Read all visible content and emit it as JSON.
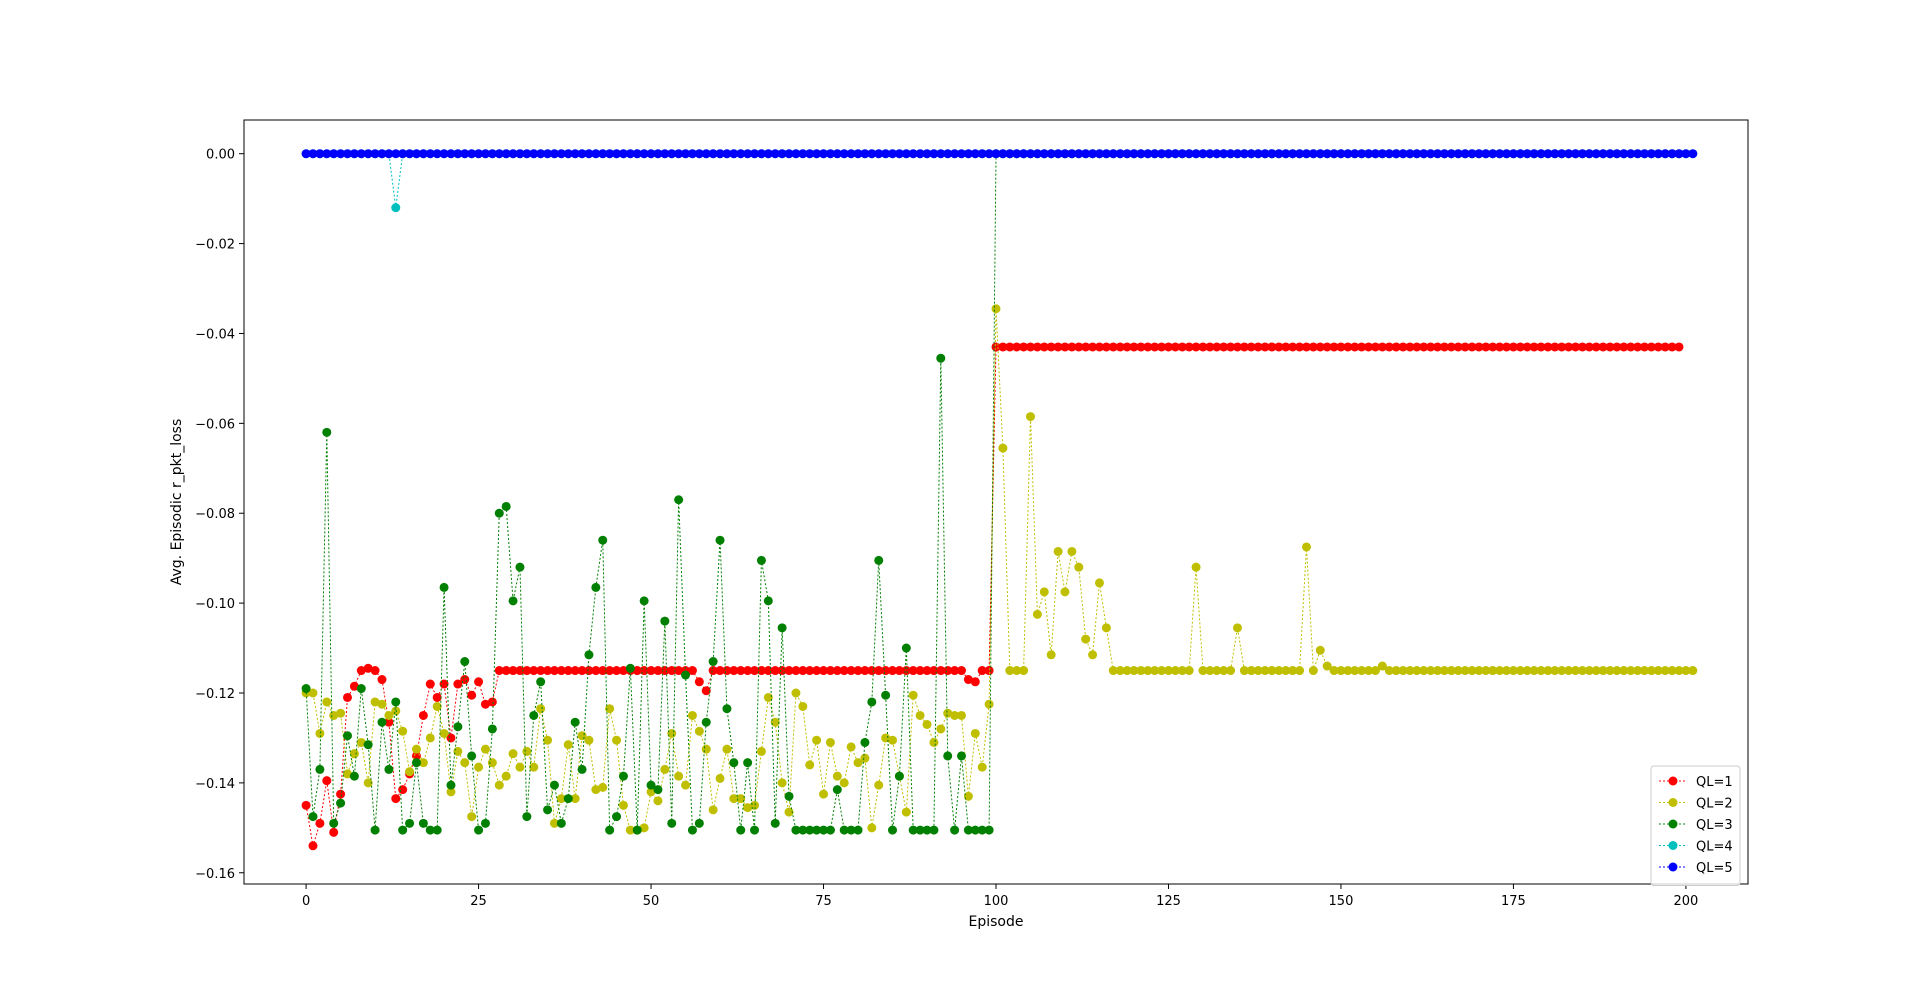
{
  "chart_data": {
    "type": "line",
    "title": "",
    "xlabel": "Episode",
    "ylabel": "Avg. Episodic r_pkt_loss",
    "xlim": [
      -9,
      209
    ],
    "ylim": [
      -0.1625,
      0.0075
    ],
    "xticks": [
      0,
      25,
      50,
      75,
      100,
      125,
      150,
      175,
      200
    ],
    "yticks": [
      0.0,
      -0.02,
      -0.04,
      -0.06,
      -0.08,
      -0.1,
      -0.12,
      -0.14,
      -0.16
    ],
    "ytick_labels": [
      "0.00",
      "−0.02",
      "−0.04",
      "−0.06",
      "−0.08",
      "−0.10",
      "−0.12",
      "−0.14",
      "−0.16"
    ],
    "grid": false,
    "legend_position": "lower-right",
    "x": "episodes 0 through 199 (200 points per series)",
    "series": [
      {
        "name": "QL=1",
        "color": "#ff0000",
        "values": [
          -0.145,
          -0.154,
          -0.149,
          -0.1395,
          -0.151,
          -0.1425,
          -0.121,
          -0.1185,
          -0.115,
          -0.1145,
          -0.115,
          -0.117,
          -0.1265,
          -0.1435,
          -0.1415,
          -0.138,
          -0.134,
          -0.125,
          -0.118,
          -0.121,
          -0.118,
          -0.13,
          -0.118,
          -0.117,
          -0.1205,
          -0.1175,
          -0.1225,
          -0.122,
          -0.115,
          -0.115,
          -0.115,
          -0.115,
          -0.115,
          -0.115,
          -0.115,
          -0.115,
          -0.115,
          -0.115,
          -0.115,
          -0.115,
          -0.115,
          -0.115,
          -0.115,
          -0.115,
          -0.115,
          -0.115,
          -0.115,
          -0.115,
          -0.115,
          -0.115,
          -0.115,
          -0.115,
          -0.115,
          -0.115,
          -0.115,
          -0.115,
          -0.115,
          -0.1175,
          -0.1195,
          -0.115,
          -0.115,
          -0.115,
          -0.115,
          -0.115,
          -0.115,
          -0.115,
          -0.115,
          -0.115,
          -0.115,
          -0.115,
          -0.115,
          -0.115,
          -0.115,
          -0.115,
          -0.115,
          -0.115,
          -0.115,
          -0.115,
          -0.115,
          -0.115,
          -0.115,
          -0.115,
          -0.115,
          -0.115,
          -0.115,
          -0.115,
          -0.115,
          -0.115,
          -0.115,
          -0.115,
          -0.115,
          -0.115,
          -0.115,
          -0.115,
          -0.115,
          -0.115,
          -0.117,
          -0.1175,
          -0.115,
          -0.115,
          -0.043,
          -0.043,
          -0.043,
          -0.043,
          -0.043,
          -0.043,
          -0.043,
          -0.043,
          -0.043,
          -0.043,
          -0.043,
          -0.043,
          -0.043,
          -0.043,
          -0.043,
          -0.043,
          -0.043,
          -0.043,
          -0.043,
          -0.043,
          -0.043,
          -0.043,
          -0.043,
          -0.043,
          -0.043,
          -0.043,
          -0.043,
          -0.043,
          -0.043,
          -0.043,
          -0.043,
          -0.043,
          -0.043,
          -0.043,
          -0.043,
          -0.043,
          -0.043,
          -0.043,
          -0.043,
          -0.043,
          -0.043,
          -0.043,
          -0.043,
          -0.043,
          -0.043,
          -0.043,
          -0.043,
          -0.043,
          -0.043,
          -0.043,
          -0.043,
          -0.043,
          -0.043,
          -0.043,
          -0.043,
          -0.043,
          -0.043,
          -0.043,
          -0.043,
          -0.043,
          -0.043,
          -0.043,
          -0.043,
          -0.043,
          -0.043,
          -0.043,
          -0.043,
          -0.043,
          -0.043,
          -0.043,
          -0.043,
          -0.043,
          -0.043,
          -0.043,
          -0.043,
          -0.043,
          -0.043,
          -0.043,
          -0.043,
          -0.043,
          -0.043,
          -0.043,
          -0.043,
          -0.043,
          -0.043,
          -0.043,
          -0.043,
          -0.043,
          -0.043,
          -0.043,
          -0.043,
          -0.043,
          -0.043,
          -0.043,
          -0.043,
          -0.043,
          -0.043,
          -0.043,
          -0.043,
          -0.043
        ]
      },
      {
        "name": "QL=2",
        "color": "#bfbf00",
        "values": [
          -0.12,
          -0.12,
          -0.129,
          -0.122,
          -0.125,
          -0.1245,
          -0.138,
          -0.1335,
          -0.131,
          -0.14,
          -0.122,
          -0.1225,
          -0.125,
          -0.124,
          -0.1285,
          -0.1375,
          -0.1325,
          -0.1355,
          -0.13,
          -0.123,
          -0.129,
          -0.142,
          -0.133,
          -0.1355,
          -0.1475,
          -0.1365,
          -0.1325,
          -0.1355,
          -0.1405,
          -0.1385,
          -0.1335,
          -0.1365,
          -0.133,
          -0.1365,
          -0.1235,
          -0.1305,
          -0.149,
          -0.1435,
          -0.1315,
          -0.1435,
          -0.1295,
          -0.1305,
          -0.1415,
          -0.141,
          -0.1235,
          -0.1305,
          -0.145,
          -0.1505,
          -0.1505,
          -0.15,
          -0.142,
          -0.144,
          -0.137,
          -0.129,
          -0.1385,
          -0.1405,
          -0.125,
          -0.1285,
          -0.1325,
          -0.146,
          -0.139,
          -0.1325,
          -0.1435,
          -0.1435,
          -0.1455,
          -0.145,
          -0.133,
          -0.121,
          -0.1265,
          -0.14,
          -0.1465,
          -0.12,
          -0.123,
          -0.136,
          -0.1305,
          -0.1425,
          -0.131,
          -0.1385,
          -0.14,
          -0.132,
          -0.1355,
          -0.1345,
          -0.15,
          -0.1405,
          -0.13,
          -0.1305,
          -0.1385,
          -0.1465,
          -0.1205,
          -0.125,
          -0.127,
          -0.131,
          -0.128,
          -0.1245,
          -0.125,
          -0.125,
          -0.143,
          -0.129,
          -0.1365,
          -0.1225,
          -0.0345,
          -0.0655,
          -0.115,
          -0.115,
          -0.115,
          -0.0585,
          -0.1025,
          -0.0975,
          -0.1115,
          -0.0885,
          -0.0975,
          -0.0885,
          -0.092,
          -0.108,
          -0.1115,
          -0.0955,
          -0.1055,
          -0.115,
          -0.115,
          -0.115,
          -0.115,
          -0.115,
          -0.115,
          -0.115,
          -0.115,
          -0.115,
          -0.115,
          -0.115,
          -0.115,
          -0.092,
          -0.115,
          -0.115,
          -0.115,
          -0.115,
          -0.115,
          -0.1055,
          -0.115,
          -0.115,
          -0.115,
          -0.115,
          -0.115,
          -0.115,
          -0.115,
          -0.115,
          -0.115,
          -0.0875,
          -0.115,
          -0.1105,
          -0.114,
          -0.115,
          -0.115,
          -0.115,
          -0.115,
          -0.115,
          -0.115,
          -0.115,
          -0.114,
          -0.115,
          -0.115,
          -0.115,
          -0.115,
          -0.115,
          -0.115,
          -0.115,
          -0.115,
          -0.115,
          -0.115,
          -0.115,
          -0.115,
          -0.115,
          -0.115,
          -0.115,
          -0.115,
          -0.115,
          -0.115,
          -0.115,
          -0.115,
          -0.115,
          -0.115,
          -0.115,
          -0.115,
          -0.115,
          -0.115,
          -0.115,
          -0.115,
          -0.115,
          -0.115,
          -0.115,
          -0.115,
          -0.115,
          -0.115,
          -0.115,
          -0.115,
          -0.115,
          -0.115,
          -0.115,
          -0.115,
          -0.115,
          -0.115,
          -0.115,
          -0.115,
          -0.115
        ]
      },
      {
        "name": "QL=3",
        "color": "#008000",
        "values": [
          -0.119,
          -0.1475,
          -0.137,
          -0.062,
          -0.149,
          -0.1445,
          -0.1295,
          -0.1385,
          -0.119,
          -0.1315,
          -0.1505,
          -0.1265,
          -0.137,
          -0.122,
          -0.1505,
          -0.149,
          -0.1355,
          -0.149,
          -0.1505,
          -0.1505,
          -0.0965,
          -0.1405,
          -0.1275,
          -0.113,
          -0.134,
          -0.1505,
          -0.149,
          -0.128,
          -0.08,
          -0.0785,
          -0.0995,
          -0.092,
          -0.1475,
          -0.125,
          -0.1175,
          -0.146,
          -0.1405,
          -0.149,
          -0.1435,
          -0.1265,
          -0.137,
          -0.1115,
          -0.0965,
          -0.086,
          -0.1505,
          -0.1475,
          -0.1385,
          -0.1145,
          -0.1505,
          -0.0995,
          -0.1405,
          -0.1415,
          -0.104,
          -0.149,
          -0.077,
          -0.116,
          -0.1505,
          -0.149,
          -0.1265,
          -0.113,
          -0.086,
          -0.1235,
          -0.1355,
          -0.1505,
          -0.1355,
          -0.1505,
          -0.0905,
          -0.0995,
          -0.149,
          -0.1055,
          -0.143,
          -0.1505,
          -0.1505,
          -0.1505,
          -0.1505,
          -0.1505,
          -0.1505,
          -0.1415,
          -0.1505,
          -0.1505,
          -0.1505,
          -0.131,
          -0.122,
          -0.0905,
          -0.1205,
          -0.1505,
          -0.1385,
          -0.11,
          -0.1505,
          -0.1505,
          -0.1505,
          -0.1505,
          -0.0455,
          -0.134,
          -0.1505,
          -0.134,
          -0.1505,
          -0.1505,
          -0.1505,
          -0.1505,
          0.0,
          0.0,
          0.0,
          0.0,
          0.0,
          0.0,
          0.0,
          0.0,
          0.0,
          0.0,
          0.0,
          0.0,
          0.0,
          0.0,
          0.0,
          0.0,
          0.0,
          0.0,
          0.0,
          0.0,
          0.0,
          0.0,
          0.0,
          0.0,
          0.0,
          0.0,
          0.0,
          0.0,
          0.0,
          0.0,
          0.0,
          0.0,
          0.0,
          0.0,
          0.0,
          0.0,
          0.0,
          0.0,
          0.0,
          0.0,
          0.0,
          0.0,
          0.0,
          0.0,
          0.0,
          0.0,
          0.0,
          0.0,
          0.0,
          0.0,
          0.0,
          0.0,
          0.0,
          0.0,
          0.0,
          0.0,
          0.0,
          0.0,
          0.0,
          0.0,
          0.0,
          0.0,
          0.0,
          0.0,
          0.0,
          0.0,
          0.0,
          0.0,
          0.0,
          0.0,
          0.0,
          0.0,
          0.0,
          0.0,
          0.0,
          0.0,
          0.0,
          0.0,
          0.0,
          0.0,
          0.0,
          0.0,
          0.0,
          0.0,
          0.0,
          0.0,
          0.0,
          0.0,
          0.0,
          0.0,
          0.0,
          0.0,
          0.0,
          0.0,
          0.0,
          0.0,
          0.0,
          0.0,
          0.0,
          0.0
        ]
      },
      {
        "name": "QL=4",
        "color": "#00bfbf",
        "values": [
          0.0,
          0.0,
          0.0,
          0.0,
          0.0,
          0.0,
          0.0,
          0.0,
          0.0,
          0.0,
          0.0,
          0.0,
          0.0,
          -0.012,
          0.0,
          0.0,
          0.0,
          0.0,
          0.0,
          0.0,
          0.0,
          0.0,
          0.0,
          0.0,
          0.0,
          0.0,
          0.0,
          0.0,
          0.0,
          0.0,
          0.0,
          0.0,
          0.0,
          0.0,
          0.0,
          0.0,
          0.0,
          0.0,
          0.0,
          0.0,
          0.0,
          0.0,
          0.0,
          0.0,
          0.0,
          0.0,
          0.0,
          0.0,
          0.0,
          0.0,
          0.0,
          0.0,
          0.0,
          0.0,
          0.0,
          0.0,
          0.0,
          0.0,
          0.0,
          0.0,
          0.0,
          0.0,
          0.0,
          0.0,
          0.0,
          0.0,
          0.0,
          0.0,
          0.0,
          0.0,
          0.0,
          0.0,
          0.0,
          0.0,
          0.0,
          0.0,
          0.0,
          0.0,
          0.0,
          0.0,
          0.0,
          0.0,
          0.0,
          0.0,
          0.0,
          0.0,
          0.0,
          0.0,
          0.0,
          0.0,
          0.0,
          0.0,
          0.0,
          0.0,
          0.0,
          0.0,
          0.0,
          0.0,
          0.0,
          0.0,
          0.0,
          0.0,
          0.0,
          0.0,
          0.0,
          0.0,
          0.0,
          0.0,
          0.0,
          0.0,
          0.0,
          0.0,
          0.0,
          0.0,
          0.0,
          0.0,
          0.0,
          0.0,
          0.0,
          0.0,
          0.0,
          0.0,
          0.0,
          0.0,
          0.0,
          0.0,
          0.0,
          0.0,
          0.0,
          0.0,
          0.0,
          0.0,
          0.0,
          0.0,
          0.0,
          0.0,
          0.0,
          0.0,
          0.0,
          0.0,
          0.0,
          0.0,
          0.0,
          0.0,
          0.0,
          0.0,
          0.0,
          0.0,
          0.0,
          0.0,
          0.0,
          0.0,
          0.0,
          0.0,
          0.0,
          0.0,
          0.0,
          0.0,
          0.0,
          0.0,
          0.0,
          0.0,
          0.0,
          0.0,
          0.0,
          0.0,
          0.0,
          0.0,
          0.0,
          0.0,
          0.0,
          0.0,
          0.0,
          0.0,
          0.0,
          0.0,
          0.0,
          0.0,
          0.0,
          0.0,
          0.0,
          0.0,
          0.0,
          0.0,
          0.0,
          0.0,
          0.0,
          0.0,
          0.0,
          0.0,
          0.0,
          0.0,
          0.0,
          0.0,
          0.0,
          0.0,
          0.0,
          0.0,
          0.0,
          0.0,
          0.0,
          0.0
        ]
      },
      {
        "name": "QL=5",
        "color": "#0000ff",
        "values": [
          0.0,
          0.0,
          0.0,
          0.0,
          0.0,
          0.0,
          0.0,
          0.0,
          0.0,
          0.0,
          0.0,
          0.0,
          0.0,
          0.0,
          0.0,
          0.0,
          0.0,
          0.0,
          0.0,
          0.0,
          0.0,
          0.0,
          0.0,
          0.0,
          0.0,
          0.0,
          0.0,
          0.0,
          0.0,
          0.0,
          0.0,
          0.0,
          0.0,
          0.0,
          0.0,
          0.0,
          0.0,
          0.0,
          0.0,
          0.0,
          0.0,
          0.0,
          0.0,
          0.0,
          0.0,
          0.0,
          0.0,
          0.0,
          0.0,
          0.0,
          0.0,
          0.0,
          0.0,
          0.0,
          0.0,
          0.0,
          0.0,
          0.0,
          0.0,
          0.0,
          0.0,
          0.0,
          0.0,
          0.0,
          0.0,
          0.0,
          0.0,
          0.0,
          0.0,
          0.0,
          0.0,
          0.0,
          0.0,
          0.0,
          0.0,
          0.0,
          0.0,
          0.0,
          0.0,
          0.0,
          0.0,
          0.0,
          0.0,
          0.0,
          0.0,
          0.0,
          0.0,
          0.0,
          0.0,
          0.0,
          0.0,
          0.0,
          0.0,
          0.0,
          0.0,
          0.0,
          0.0,
          0.0,
          0.0,
          0.0,
          0.0,
          0.0,
          0.0,
          0.0,
          0.0,
          0.0,
          0.0,
          0.0,
          0.0,
          0.0,
          0.0,
          0.0,
          0.0,
          0.0,
          0.0,
          0.0,
          0.0,
          0.0,
          0.0,
          0.0,
          0.0,
          0.0,
          0.0,
          0.0,
          0.0,
          0.0,
          0.0,
          0.0,
          0.0,
          0.0,
          0.0,
          0.0,
          0.0,
          0.0,
          0.0,
          0.0,
          0.0,
          0.0,
          0.0,
          0.0,
          0.0,
          0.0,
          0.0,
          0.0,
          0.0,
          0.0,
          0.0,
          0.0,
          0.0,
          0.0,
          0.0,
          0.0,
          0.0,
          0.0,
          0.0,
          0.0,
          0.0,
          0.0,
          0.0,
          0.0,
          0.0,
          0.0,
          0.0,
          0.0,
          0.0,
          0.0,
          0.0,
          0.0,
          0.0,
          0.0,
          0.0,
          0.0,
          0.0,
          0.0,
          0.0,
          0.0,
          0.0,
          0.0,
          0.0,
          0.0,
          0.0,
          0.0,
          0.0,
          0.0,
          0.0,
          0.0,
          0.0,
          0.0,
          0.0,
          0.0,
          0.0,
          0.0,
          0.0,
          0.0,
          0.0,
          0.0,
          0.0,
          0.0,
          0.0,
          0.0,
          0.0,
          0.0
        ]
      }
    ]
  }
}
